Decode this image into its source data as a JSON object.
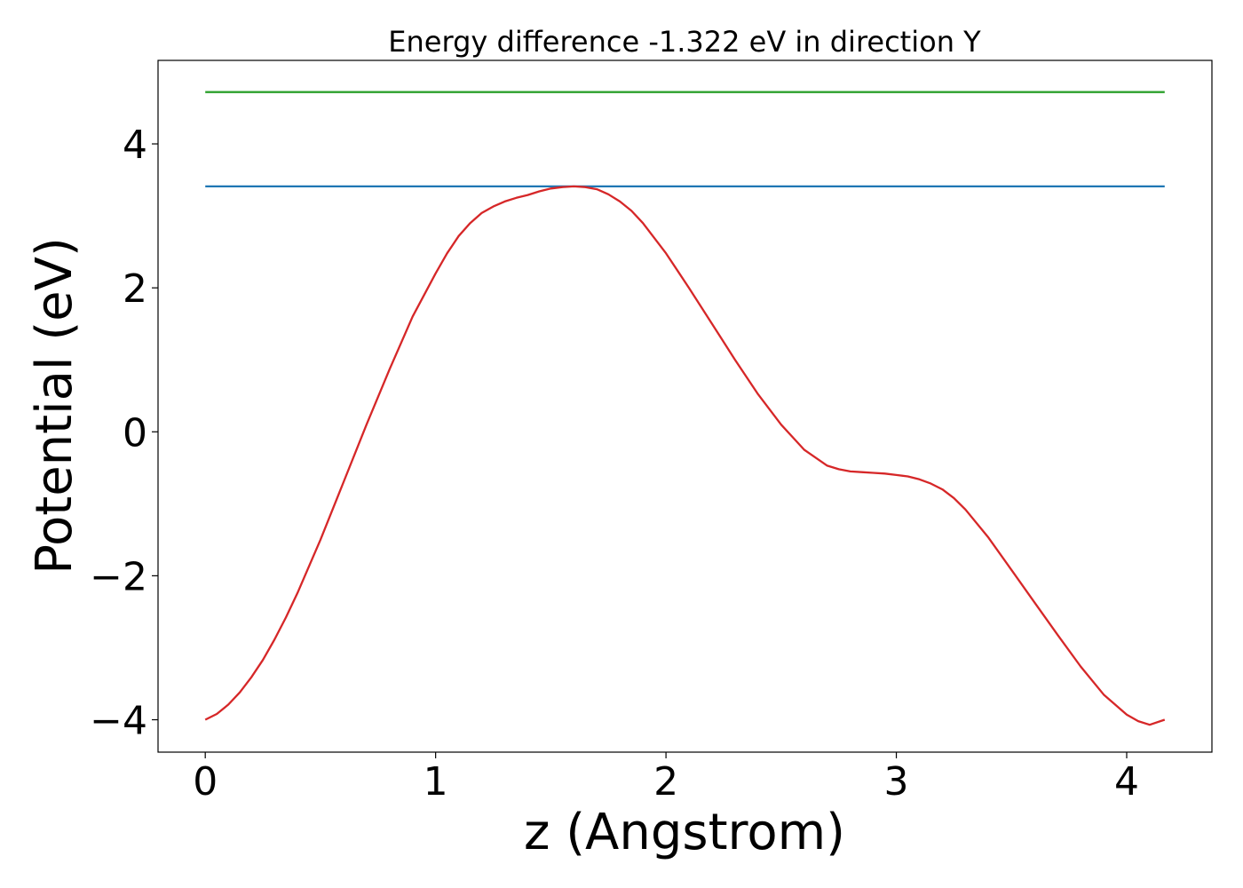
{
  "chart_data": {
    "type": "line",
    "title": "Energy difference -1.322 eV in direction Y",
    "xlabel": "z (Angstrom)",
    "ylabel": "Potential (eV)",
    "xlim": [
      -0.205,
      4.37
    ],
    "ylim": [
      -4.45,
      5.16
    ],
    "grid": false,
    "x_ticks": [
      {
        "value": 0,
        "label": "0"
      },
      {
        "value": 1,
        "label": "1"
      },
      {
        "value": 2,
        "label": "2"
      },
      {
        "value": 3,
        "label": "3"
      },
      {
        "value": 4,
        "label": "4"
      }
    ],
    "y_ticks": [
      {
        "value": -4,
        "label": "−4"
      },
      {
        "value": -2,
        "label": "−2"
      },
      {
        "value": 0,
        "label": "0"
      },
      {
        "value": 2,
        "label": "2"
      },
      {
        "value": 4,
        "label": "4"
      }
    ],
    "series": [
      {
        "color": "#2ca02c",
        "x": [
          0,
          4.165
        ],
        "y": [
          4.72,
          4.72
        ]
      },
      {
        "color": "#1f77b4",
        "x": [
          0,
          4.165
        ],
        "y": [
          3.41,
          3.41
        ]
      },
      {
        "color": "#d62728",
        "x": [
          0,
          0.05,
          0.1,
          0.15,
          0.2,
          0.25,
          0.3,
          0.35,
          0.4,
          0.5,
          0.6,
          0.7,
          0.8,
          0.9,
          1.0,
          1.05,
          1.1,
          1.15,
          1.2,
          1.25,
          1.3,
          1.35,
          1.4,
          1.45,
          1.5,
          1.55,
          1.6,
          1.65,
          1.7,
          1.75,
          1.8,
          1.85,
          1.9,
          2.0,
          2.1,
          2.2,
          2.3,
          2.4,
          2.5,
          2.6,
          2.7,
          2.75,
          2.8,
          2.85,
          2.9,
          2.95,
          3.0,
          3.05,
          3.1,
          3.15,
          3.2,
          3.25,
          3.3,
          3.4,
          3.5,
          3.6,
          3.7,
          3.8,
          3.9,
          4.0,
          4.05,
          4.1,
          4.165
        ],
        "y": [
          -4.0,
          -3.92,
          -3.79,
          -3.62,
          -3.41,
          -3.17,
          -2.89,
          -2.58,
          -2.24,
          -1.5,
          -0.7,
          0.1,
          0.87,
          1.6,
          2.2,
          2.48,
          2.72,
          2.9,
          3.04,
          3.13,
          3.2,
          3.25,
          3.29,
          3.34,
          3.38,
          3.4,
          3.41,
          3.4,
          3.37,
          3.3,
          3.2,
          3.07,
          2.9,
          2.48,
          2.0,
          1.5,
          1.0,
          0.52,
          0.1,
          -0.25,
          -0.47,
          -0.52,
          -0.55,
          -0.56,
          -0.57,
          -0.58,
          -0.6,
          -0.62,
          -0.66,
          -0.72,
          -0.8,
          -0.92,
          -1.08,
          -1.47,
          -1.92,
          -2.37,
          -2.82,
          -3.26,
          -3.65,
          -3.93,
          -4.02,
          -4.07,
          -4.0
        ]
      }
    ]
  }
}
